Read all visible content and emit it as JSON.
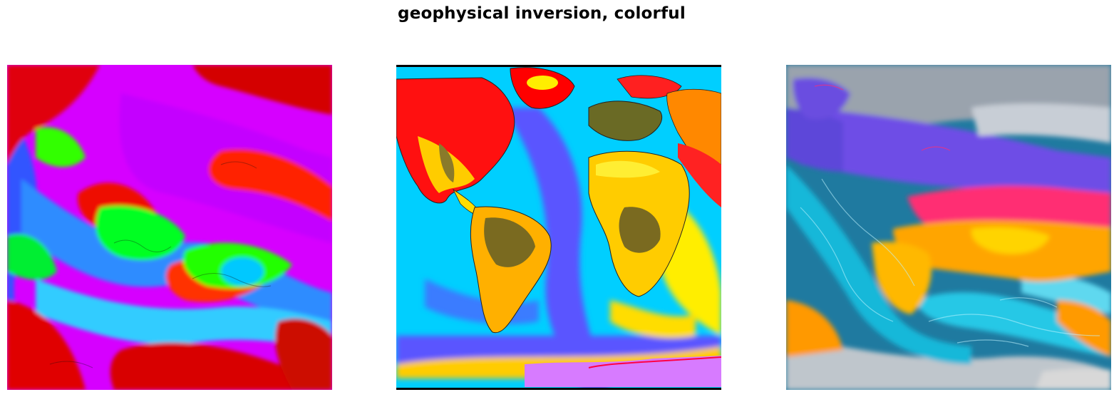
{
  "figure": {
    "title": "geophysical inversion, colorful"
  },
  "panels": [
    {
      "subject": "abstract swirl",
      "palette": [
        "#ff0000",
        "#00ff00",
        "#cc00ff",
        "#0066ff",
        "#33ccff",
        "#ffffff"
      ]
    },
    {
      "subject": "world map",
      "palette": [
        "#00d5ff",
        "#5a55ff",
        "#ffff00",
        "#ffaa00",
        "#ff0000",
        "#7a6a20"
      ]
    },
    {
      "subject": "world map",
      "palette": [
        "#0e4d78",
        "#18b6d6",
        "#ffa500",
        "#ff2e73",
        "#6a4ee0",
        "#c8c8c8"
      ]
    }
  ]
}
